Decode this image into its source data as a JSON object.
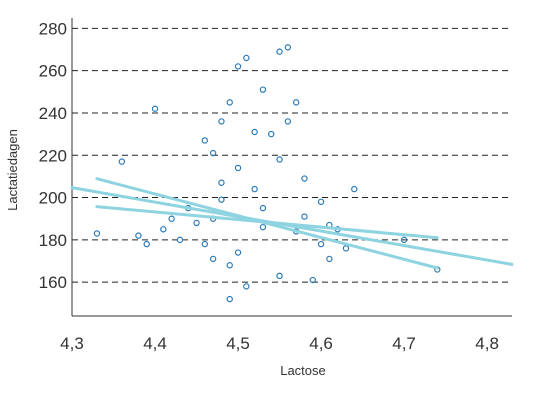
{
  "chart_data": {
    "type": "scatter",
    "xlabel": "Lactose",
    "ylabel": "Lactatiedagen",
    "xlim": [
      4.3,
      4.83
    ],
    "ylim": [
      144,
      283
    ],
    "x_ticks": [
      "4,3",
      "4,4",
      "4,5",
      "4,6",
      "4,7",
      "4,8"
    ],
    "y_ticks": [
      "160",
      "180",
      "200",
      "220",
      "240",
      "260",
      "280"
    ],
    "grid": "horizontal dashed",
    "colors": {
      "points": "#2a7ab8",
      "trend_lines": "#8dd3e0",
      "grid": "#222222",
      "axes": "#333333"
    },
    "trend_lines": [
      {
        "x": [
          4.3,
          4.83
        ],
        "y": [
          204.7,
          168.4
        ]
      },
      {
        "x": [
          4.33,
          4.74
        ],
        "y": [
          208.9,
          166.7
        ]
      },
      {
        "x": [
          4.33,
          4.74
        ],
        "y": [
          195.7,
          181.0
        ]
      }
    ],
    "points": [
      [
        4.33,
        183
      ],
      [
        4.36,
        217
      ],
      [
        4.38,
        182
      ],
      [
        4.39,
        178
      ],
      [
        4.4,
        242
      ],
      [
        4.41,
        185
      ],
      [
        4.42,
        190
      ],
      [
        4.43,
        180
      ],
      [
        4.44,
        195
      ],
      [
        4.45,
        188
      ],
      [
        4.46,
        178
      ],
      [
        4.46,
        227
      ],
      [
        4.47,
        171
      ],
      [
        4.47,
        221
      ],
      [
        4.48,
        207
      ],
      [
        4.48,
        236
      ],
      [
        4.49,
        168
      ],
      [
        4.49,
        245
      ],
      [
        4.5,
        262
      ],
      [
        4.5,
        214
      ],
      [
        4.51,
        266
      ],
      [
        4.52,
        204
      ],
      [
        4.53,
        251
      ],
      [
        4.54,
        230
      ],
      [
        4.55,
        269
      ],
      [
        4.55,
        218
      ],
      [
        4.56,
        271
      ],
      [
        4.57,
        245
      ],
      [
        4.58,
        209
      ],
      [
        4.59,
        161
      ],
      [
        4.6,
        198
      ],
      [
        4.61,
        171
      ],
      [
        4.62,
        185
      ],
      [
        4.63,
        176
      ],
      [
        4.64,
        204
      ],
      [
        4.56,
        236
      ],
      [
        4.52,
        231
      ],
      [
        4.48,
        199
      ],
      [
        4.53,
        186
      ],
      [
        4.58,
        191
      ],
      [
        4.74,
        166
      ],
      [
        4.7,
        180
      ],
      [
        4.49,
        152
      ],
      [
        4.51,
        158
      ],
      [
        4.55,
        163
      ],
      [
        4.6,
        178
      ],
      [
        4.47,
        190
      ],
      [
        4.53,
        195
      ],
      [
        4.57,
        184
      ],
      [
        4.5,
        174
      ],
      [
        4.61,
        187
      ]
    ]
  }
}
